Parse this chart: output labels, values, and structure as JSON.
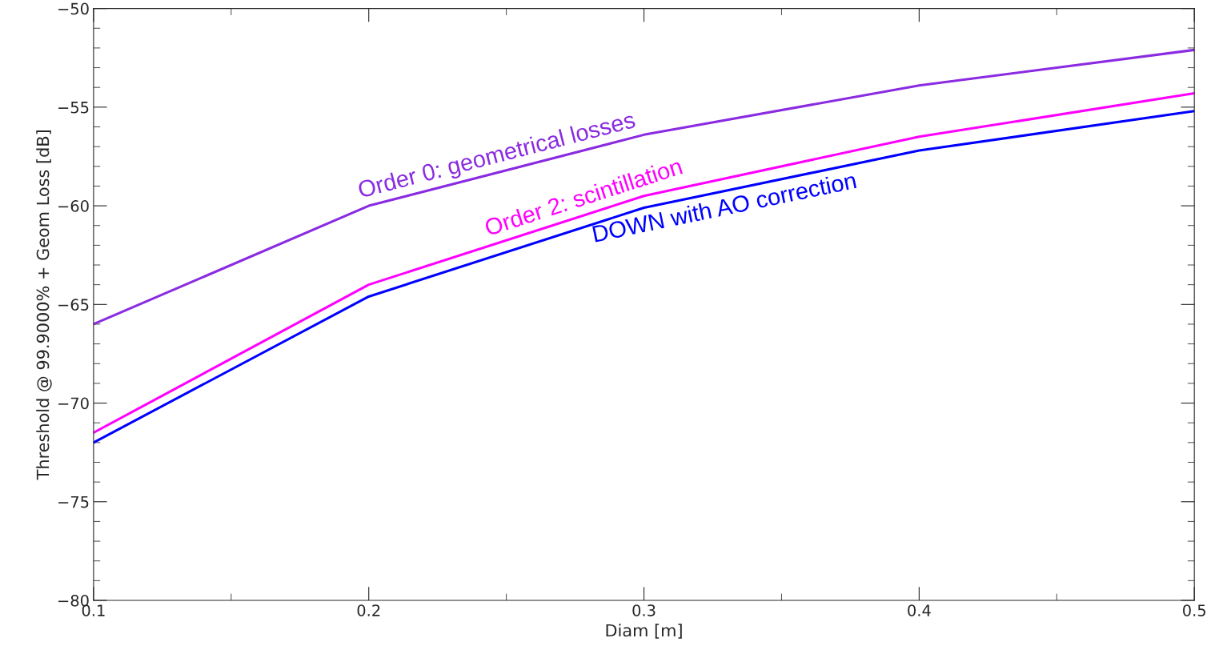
{
  "chart_data": {
    "type": "line",
    "xlabel": "Diam [m]",
    "ylabel": "Threshold @ 99.9000% + Geom Loss [dB]",
    "x": [
      0.1,
      0.2,
      0.3,
      0.4,
      0.5
    ],
    "series": [
      {
        "name": "Order 0: geometrical losses",
        "color": "#8a2be2",
        "values": [
          -66.0,
          -60.0,
          -56.4,
          -53.9,
          -52.1
        ]
      },
      {
        "name": "Order 2: scintillation",
        "color": "#ff00ff",
        "values": [
          -71.5,
          -64.0,
          -59.5,
          -56.5,
          -54.3
        ]
      },
      {
        "name": "DOWN with AO correction",
        "color": "#0000ff",
        "values": [
          -72.0,
          -64.6,
          -60.1,
          -57.2,
          -55.2
        ]
      }
    ],
    "xlim": [
      0.1,
      0.5
    ],
    "xticks": [
      0.1,
      0.2,
      0.3,
      0.4,
      0.5
    ],
    "ylim": [
      -80,
      -50
    ],
    "yticks": [
      -80,
      -75,
      -70,
      -65,
      -60,
      -55,
      -50
    ],
    "grid": false,
    "legend": false,
    "marker": "none",
    "line_style": "solid"
  }
}
